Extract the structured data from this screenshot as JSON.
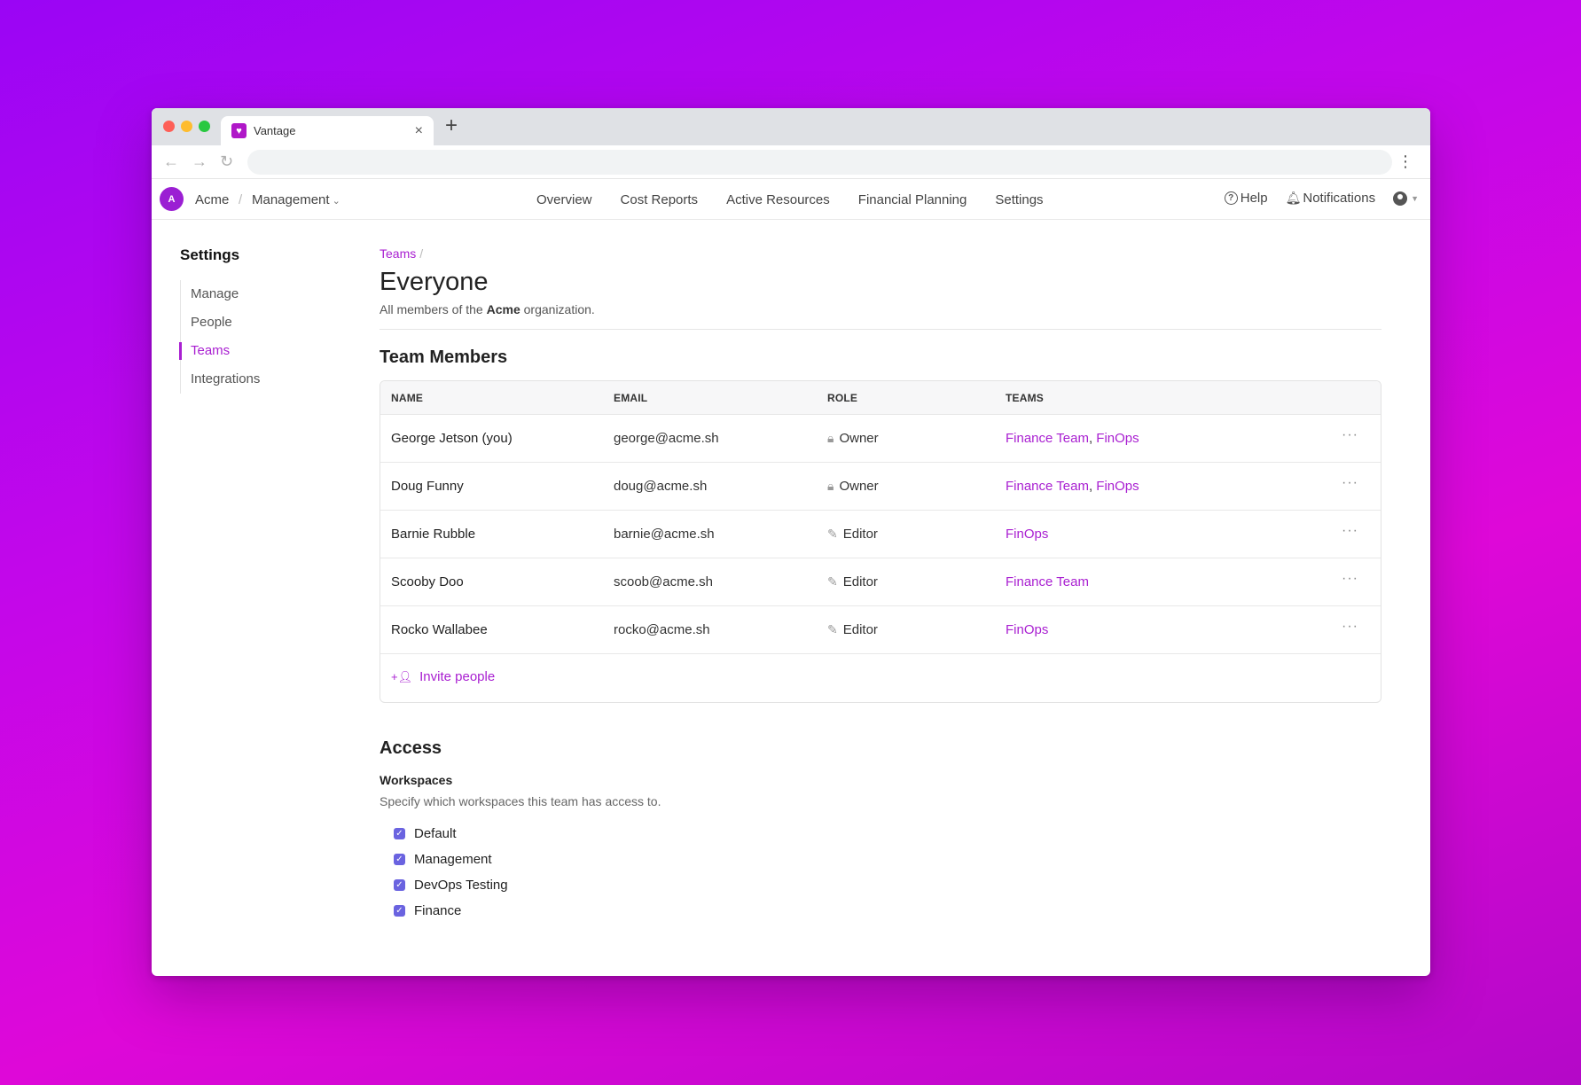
{
  "browser": {
    "tab_title": "Vantage",
    "new_tab": "+",
    "tab_close": "×",
    "back": "←",
    "forward": "→",
    "reload": "↻",
    "menu": "⋮"
  },
  "header": {
    "org_initial": "A",
    "org_name": "Acme",
    "separator": "/",
    "workspace": "Management",
    "nav": [
      "Overview",
      "Cost Reports",
      "Active Resources",
      "Financial Planning",
      "Settings"
    ],
    "help": "Help",
    "notifications": "Notifications"
  },
  "sidebar": {
    "title": "Settings",
    "items": [
      {
        "label": "Manage"
      },
      {
        "label": "People"
      },
      {
        "label": "Teams"
      },
      {
        "label": "Integrations"
      }
    ]
  },
  "main": {
    "breadcrumb": "Teams",
    "breadcrumb_sep": "/",
    "title": "Everyone",
    "desc_prefix": "All members of the ",
    "desc_org": "Acme",
    "desc_suffix": " organization.",
    "members_title": "Team Members",
    "columns": [
      "NAME",
      "EMAIL",
      "ROLE",
      "TEAMS"
    ],
    "rows": [
      {
        "name": "George Jetson (you)",
        "email": "george@acme.sh",
        "role": "Owner",
        "role_icon": "lock-icon",
        "teams": [
          "Finance Team",
          "FinOps"
        ]
      },
      {
        "name": "Doug Funny",
        "email": "doug@acme.sh",
        "role": "Owner",
        "role_icon": "lock-icon",
        "teams": [
          "Finance Team",
          "FinOps"
        ]
      },
      {
        "name": "Barnie Rubble",
        "email": "barnie@acme.sh",
        "role": "Editor",
        "role_icon": "pencil-icon",
        "teams": [
          "FinOps"
        ]
      },
      {
        "name": "Scooby Doo",
        "email": "scoob@acme.sh",
        "role": "Editor",
        "role_icon": "pencil-icon",
        "teams": [
          "Finance Team"
        ]
      },
      {
        "name": "Rocko Wallabee",
        "email": "rocko@acme.sh",
        "role": "Editor",
        "role_icon": "pencil-icon",
        "teams": [
          "FinOps"
        ]
      }
    ],
    "row_menu": "···",
    "invite_label": "Invite people",
    "access_title": "Access",
    "workspaces_label": "Workspaces",
    "workspaces_desc": "Specify which workspaces this team has access to.",
    "workspaces": [
      {
        "name": "Default",
        "checked": true
      },
      {
        "name": "Management",
        "checked": true
      },
      {
        "name": "DevOps Testing",
        "checked": true
      },
      {
        "name": "Finance",
        "checked": true
      }
    ]
  },
  "colors": {
    "accent": "#a91fd1",
    "checkbox": "#6a63e0"
  }
}
